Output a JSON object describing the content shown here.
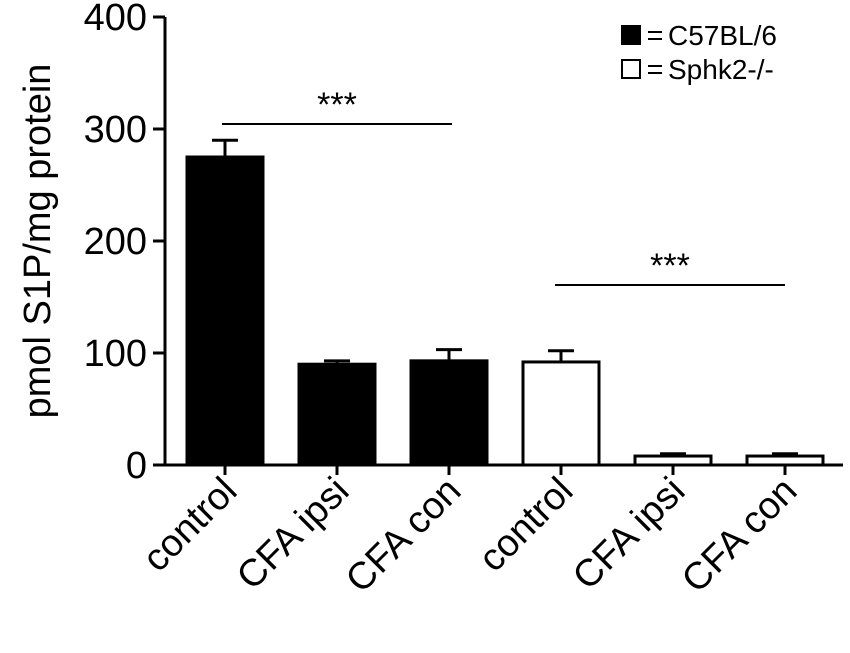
{
  "chart_data": {
    "type": "bar",
    "y_label": "pmol S1P/mg protein",
    "categories": [
      "control",
      "CFA ipsi",
      "CFA con",
      "control",
      "CFA ipsi",
      "CFA con"
    ],
    "series": [
      {
        "name": "C57BL/6",
        "color": "#000000",
        "values": [
          275,
          90,
          93,
          null,
          null,
          null
        ],
        "errors": [
          15,
          3,
          10,
          null,
          null,
          null
        ]
      },
      {
        "name": "Sphk2-/-",
        "color": "#ffffff",
        "values": [
          null,
          null,
          null,
          92,
          8,
          8
        ],
        "errors": [
          null,
          null,
          null,
          10,
          2,
          2
        ]
      }
    ],
    "annotations": [
      "***",
      "***"
    ],
    "ylim": [
      0,
      400
    ],
    "yticks": [
      0,
      100,
      200,
      300,
      400
    ],
    "grid": false,
    "legend": "upper right"
  }
}
